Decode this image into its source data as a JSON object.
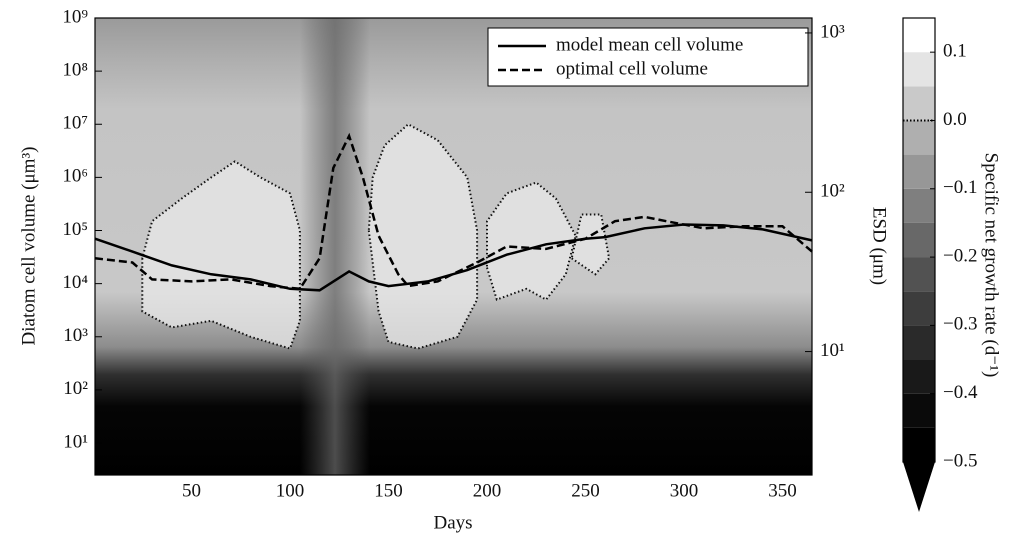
{
  "chart_data": {
    "type": "line",
    "xlabel": "Days",
    "ylabel": "Diatom cell volume (μm³)",
    "y2label": "ESD (μm)",
    "xlim": [
      1,
      365
    ],
    "xticks": [
      50,
      100,
      150,
      200,
      250,
      300,
      350
    ],
    "ylim": [
      2.5,
      1000000000
    ],
    "yscale": "log",
    "yticks": [
      {
        "value": 10,
        "label": "10¹"
      },
      {
        "value": 100,
        "label": "10²"
      },
      {
        "value": 1000,
        "label": "10³"
      },
      {
        "value": 10000,
        "label": "10⁴"
      },
      {
        "value": 100000,
        "label": "10⁵"
      },
      {
        "value": 1000000,
        "label": "10⁶"
      },
      {
        "value": 10000000,
        "label": "10⁷"
      },
      {
        "value": 100000000,
        "label": "10⁸"
      },
      {
        "value": 1000000000,
        "label": "10⁹"
      }
    ],
    "y2lim": [
      1.68,
      1241
    ],
    "y2ticks": [
      {
        "value": 10,
        "label": "10¹"
      },
      {
        "value": 100,
        "label": "10²"
      },
      {
        "value": 1000,
        "label": "10³"
      }
    ],
    "legend": "upper right",
    "series": [
      {
        "name": "model mean cell volume",
        "color": "#000",
        "dash": "solid",
        "x": [
          1,
          20,
          40,
          60,
          80,
          100,
          115,
          130,
          140,
          150,
          170,
          190,
          210,
          230,
          250,
          260,
          280,
          300,
          320,
          340,
          365
        ],
        "values": [
          70000,
          40000,
          22000,
          15000,
          12000,
          8000,
          7500,
          17000,
          11000,
          9000,
          11000,
          18000,
          35000,
          55000,
          70000,
          75000,
          110000,
          130000,
          125000,
          105000,
          65000
        ]
      },
      {
        "name": "optimal cell volume",
        "color": "#000",
        "dash": "dashed",
        "x": [
          1,
          20,
          30,
          50,
          70,
          90,
          105,
          115,
          122,
          130,
          137,
          145,
          155,
          160,
          175,
          195,
          210,
          230,
          250,
          265,
          280,
          295,
          310,
          330,
          350,
          365
        ],
        "values": [
          30000,
          25000,
          12000,
          11000,
          12000,
          9000,
          8000,
          30000,
          1500000,
          6000000,
          1000000,
          80000,
          15000,
          9000,
          11000,
          25000,
          50000,
          45000,
          70000,
          150000,
          180000,
          140000,
          110000,
          120000,
          120000,
          40000
        ]
      }
    ],
    "contours": [
      {
        "x": [
          25,
          25,
          40,
          60,
          80,
          100,
          105,
          105,
          100,
          85,
          72,
          60,
          45,
          30,
          25
        ],
        "values": [
          30000,
          3000,
          1500,
          2000,
          1000,
          600,
          2000,
          100000,
          500000,
          1000000,
          2000000,
          1000000,
          400000,
          150000,
          30000
        ]
      },
      {
        "x": [
          140,
          145,
          150,
          165,
          185,
          195,
          195,
          190,
          175,
          160,
          148,
          142,
          140
        ],
        "values": [
          100000,
          3000,
          800,
          600,
          1000,
          5000,
          100000,
          1000000,
          5000000,
          10000000,
          4000000,
          1000000,
          100000
        ]
      },
      {
        "x": [
          200,
          205,
          220,
          230,
          240,
          245,
          235,
          225,
          210,
          200,
          200
        ],
        "values": [
          20000,
          5000,
          8000,
          5000,
          15000,
          80000,
          400000,
          800000,
          500000,
          150000,
          20000
        ]
      },
      {
        "x": [
          243,
          255,
          262,
          258,
          248,
          243
        ],
        "values": [
          30000,
          15000,
          30000,
          200000,
          200000,
          30000
        ]
      }
    ],
    "colorbar": {
      "label": "Specific net growth rate (d⁻¹)",
      "lim": [
        -0.5,
        0.15
      ],
      "step": 0.05,
      "ticks": [
        0.1,
        {
          "value": 0,
          "label": "0.0"
        },
        {
          "value": -0.1,
          "label": "−0.1"
        },
        {
          "value": -0.2,
          "label": "−0.2"
        },
        {
          "value": -0.3,
          "label": "−0.3"
        },
        {
          "value": -0.4,
          "label": "−0.4"
        },
        {
          "value": -0.5,
          "label": "−0.5"
        }
      ]
    }
  }
}
